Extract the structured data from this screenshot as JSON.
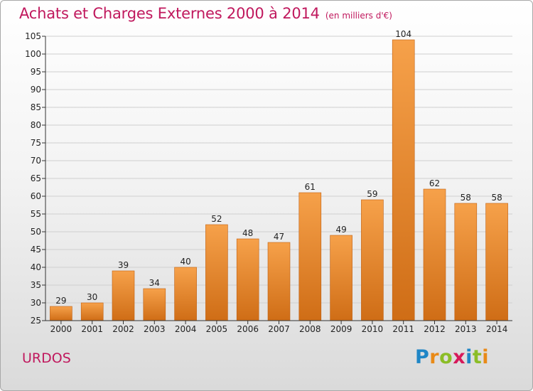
{
  "title": "Achats et Charges Externes 2000 à 2014",
  "subtitle": "(en milliers d'€)",
  "place": "URDOS",
  "logo": {
    "text": "Proxiti",
    "letters": [
      {
        "ch": "P",
        "color": "#1f86c6"
      },
      {
        "ch": "r",
        "color": "#e98a17"
      },
      {
        "ch": "o",
        "color": "#8bbd27"
      },
      {
        "ch": "x",
        "color": "#d6195a"
      },
      {
        "ch": "i",
        "color": "#1f86c6"
      },
      {
        "ch": "t",
        "color": "#8bbd27"
      },
      {
        "ch": "i",
        "color": "#e98a17"
      }
    ]
  },
  "colors": {
    "title": "#c0185d",
    "bar_light": "#f6a14a",
    "bar_dark": "#cf6d16",
    "bar_edge": "#c06012",
    "axis": "#333333",
    "grid": "#cfcfcf"
  },
  "chart_data": {
    "type": "bar",
    "title": "Achats et Charges Externes 2000 à 2014",
    "subtitle": "(en milliers d'€)",
    "categories": [
      "2000",
      "2001",
      "2002",
      "2003",
      "2004",
      "2005",
      "2006",
      "2007",
      "2008",
      "2009",
      "2010",
      "2011",
      "2012",
      "2013",
      "2014"
    ],
    "values": [
      29,
      30,
      39,
      34,
      40,
      52,
      48,
      47,
      61,
      49,
      59,
      104,
      62,
      58,
      58
    ],
    "ylim": [
      25,
      105
    ],
    "ytick_step": 5,
    "grid": true,
    "legend": "none",
    "data_labels": true
  }
}
